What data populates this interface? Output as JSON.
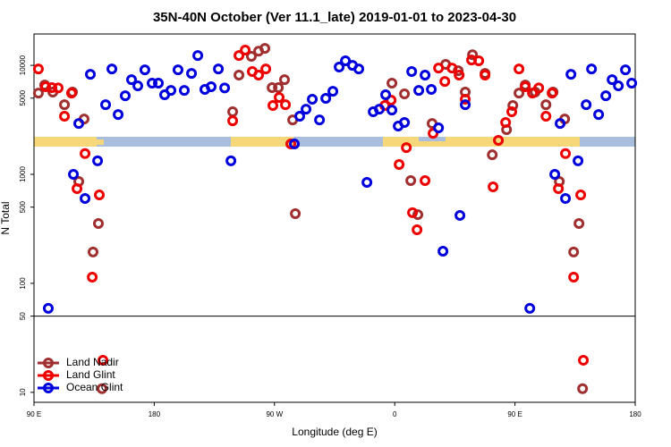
{
  "chart_data": {
    "type": "scatter",
    "title": "35N-40N October (Ver 11.1_late)   2019-01-01 to 2023-04-30",
    "x_label": "Longitude (deg E)",
    "y_label": "N Total",
    "log_y": true,
    "legend": "lower left",
    "hline": 50,
    "xlim": [
      90,
      540
    ],
    "ylim": [
      8.1,
      19400
    ],
    "xticks": [
      {
        "value": 90,
        "label": "90 E"
      },
      180,
      {
        "value": 270,
        "label": "90 W"
      },
      {
        "value": 360,
        "label": "0"
      },
      {
        "value": 450,
        "label": "90 E"
      },
      {
        "value": 540,
        "label": "180"
      }
    ],
    "yticks": [
      10,
      50,
      100,
      500,
      1000,
      5000,
      10000
    ],
    "series": [
      {
        "name": "Land Nadir",
        "color": "#a03030",
        "x": [
          93.3,
          98,
          104.1,
          112.8,
          118.8,
          123.5,
          127.5,
          134.2,
          138.2,
          140.9,
          238.7,
          243.4,
          252.7,
          258.1,
          262.8,
          268.2,
          272.9,
          277.5,
          283.6,
          285.6,
          357.9,
          367.3,
          372,
          377.3,
          388,
          398.1,
          407.5,
          412.8,
          418.2,
          427.6,
          433,
          443.7,
          448.4,
          453,
          457.7,
          465.1,
          473.2,
          478.5,
          483.2,
          487.2,
          493.9,
          497.9,
          500.6
        ],
        "values": [
          5570,
          6600,
          5680,
          4350,
          5680,
          860,
          3220,
          194,
          354,
          10.8,
          3750,
          8130,
          12100,
          13500,
          14300,
          6240,
          6240,
          7390,
          3160,
          436,
          6860,
          5470,
          877,
          427,
          2930,
          10200,
          8930,
          5680,
          12500,
          8430,
          1510,
          2570,
          4280,
          5570,
          6600,
          5680,
          4350,
          5680,
          860,
          3220,
          194,
          354,
          10.8
        ]
      },
      {
        "name": "Land Glint",
        "color": "#ee0000",
        "x": [
          93.3,
          98.7,
          103.4,
          108.1,
          112.8,
          118.1,
          122.2,
          128.2,
          133.6,
          138.9,
          141.6,
          238.7,
          243.4,
          248.1,
          253.4,
          258.1,
          263.5,
          268.8,
          273.5,
          278.2,
          282.2,
          352.6,
          357.3,
          363.3,
          368.7,
          373.3,
          376.7,
          382.7,
          388.7,
          392.8,
          397.5,
          402.9,
          408.2,
          412.8,
          417.5,
          422.9,
          427.6,
          433.6,
          437.6,
          443,
          447.6,
          453,
          457.7,
          463.1,
          467.8,
          473.2,
          477.8,
          482.5,
          487.8,
          493.9,
          499.2,
          501.2
        ],
        "values": [
          9270,
          6370,
          6240,
          6200,
          3410,
          5570,
          740,
          1550,
          114,
          647,
          19.7,
          3100,
          12300,
          13800,
          8770,
          8130,
          9270,
          4280,
          5070,
          4350,
          1900,
          4280,
          4790,
          1230,
          1760,
          445,
          310,
          877,
          2380,
          9440,
          7110,
          9440,
          8130,
          4890,
          11200,
          11000,
          8130,
          767,
          2050,
          2990,
          3750,
          9270,
          6370,
          5570,
          6200,
          3410,
          5570,
          740,
          1550,
          114,
          647,
          19.7
        ]
      },
      {
        "name": "Ocean Glint",
        "color": "#0000dd",
        "x": [
          100.7,
          119.5,
          123.5,
          128.2,
          132.2,
          137.6,
          143.6,
          148.3,
          153,
          158.3,
          163,
          167.7,
          173,
          178.4,
          183.1,
          187.8,
          192.5,
          197.8,
          202.5,
          207.9,
          212.6,
          217.9,
          222.6,
          228,
          232.7,
          237.4,
          284.9,
          288.9,
          293.6,
          298.3,
          303.7,
          308.4,
          313.7,
          318.4,
          323.1,
          328.4,
          333.1,
          339.2,
          343.9,
          348.5,
          353.2,
          357.9,
          362.6,
          367.3,
          372.7,
          378,
          382.7,
          387.4,
          392.8,
          396.1,
          408.8,
          412.8,
          461.1,
          479.8,
          483.8,
          487.8,
          491.9,
          497.2,
          503.3,
          507.3,
          512.6,
          518,
          522.7,
          527.4,
          532.7,
          537.4
        ],
        "values": [
          59,
          1000,
          2930,
          600,
          8280,
          1330,
          4350,
          9270,
          3540,
          5260,
          7390,
          6480,
          9100,
          6860,
          6860,
          5370,
          5890,
          9100,
          5890,
          8430,
          12300,
          6010,
          6370,
          9270,
          6200,
          1330,
          1900,
          3410,
          3960,
          4890,
          3160,
          4980,
          5780,
          9640,
          11000,
          10000,
          9270,
          843,
          3750,
          3960,
          5370,
          3890,
          2770,
          2990,
          8770,
          5890,
          8130,
          6010,
          2670,
          197,
          420,
          4350,
          59,
          1000,
          2930,
          600,
          8280,
          1330,
          4350,
          9270,
          3540,
          5260,
          7390,
          6480,
          9100,
          6860
        ]
      }
    ]
  }
}
